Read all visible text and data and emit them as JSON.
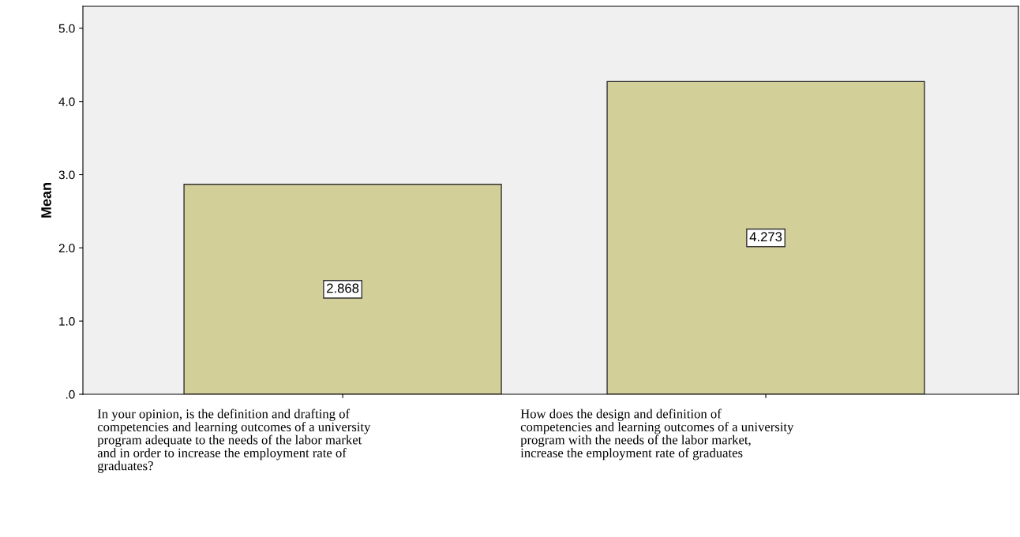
{
  "chart_data": {
    "type": "bar",
    "ylabel": "Mean",
    "categories": [
      "In your opinion, is the definition and drafting of\ncompetencies and learning outcomes of a university\nprogram adequate to the needs of the labor market\nand in order to increase the employment rate of\ngraduates?",
      "How does the design and definition of\ncompetencies and learning outcomes of a university\nprogram with the needs of the labor market,\nincrease the employment rate of graduates"
    ],
    "values": [
      2.868,
      4.273
    ],
    "color": "#d3cf99",
    "data_labels": true,
    "ylim": [
      0,
      5.3
    ],
    "yticks": [
      {
        "value": 0,
        "label": ".0"
      },
      {
        "value": 1,
        "label": "1.0"
      },
      {
        "value": 2,
        "label": "2.0"
      },
      {
        "value": 3,
        "label": "3.0"
      },
      {
        "value": 4,
        "label": "4.0"
      },
      {
        "value": 5,
        "label": "5.0"
      }
    ],
    "grid": false,
    "legend": false
  }
}
